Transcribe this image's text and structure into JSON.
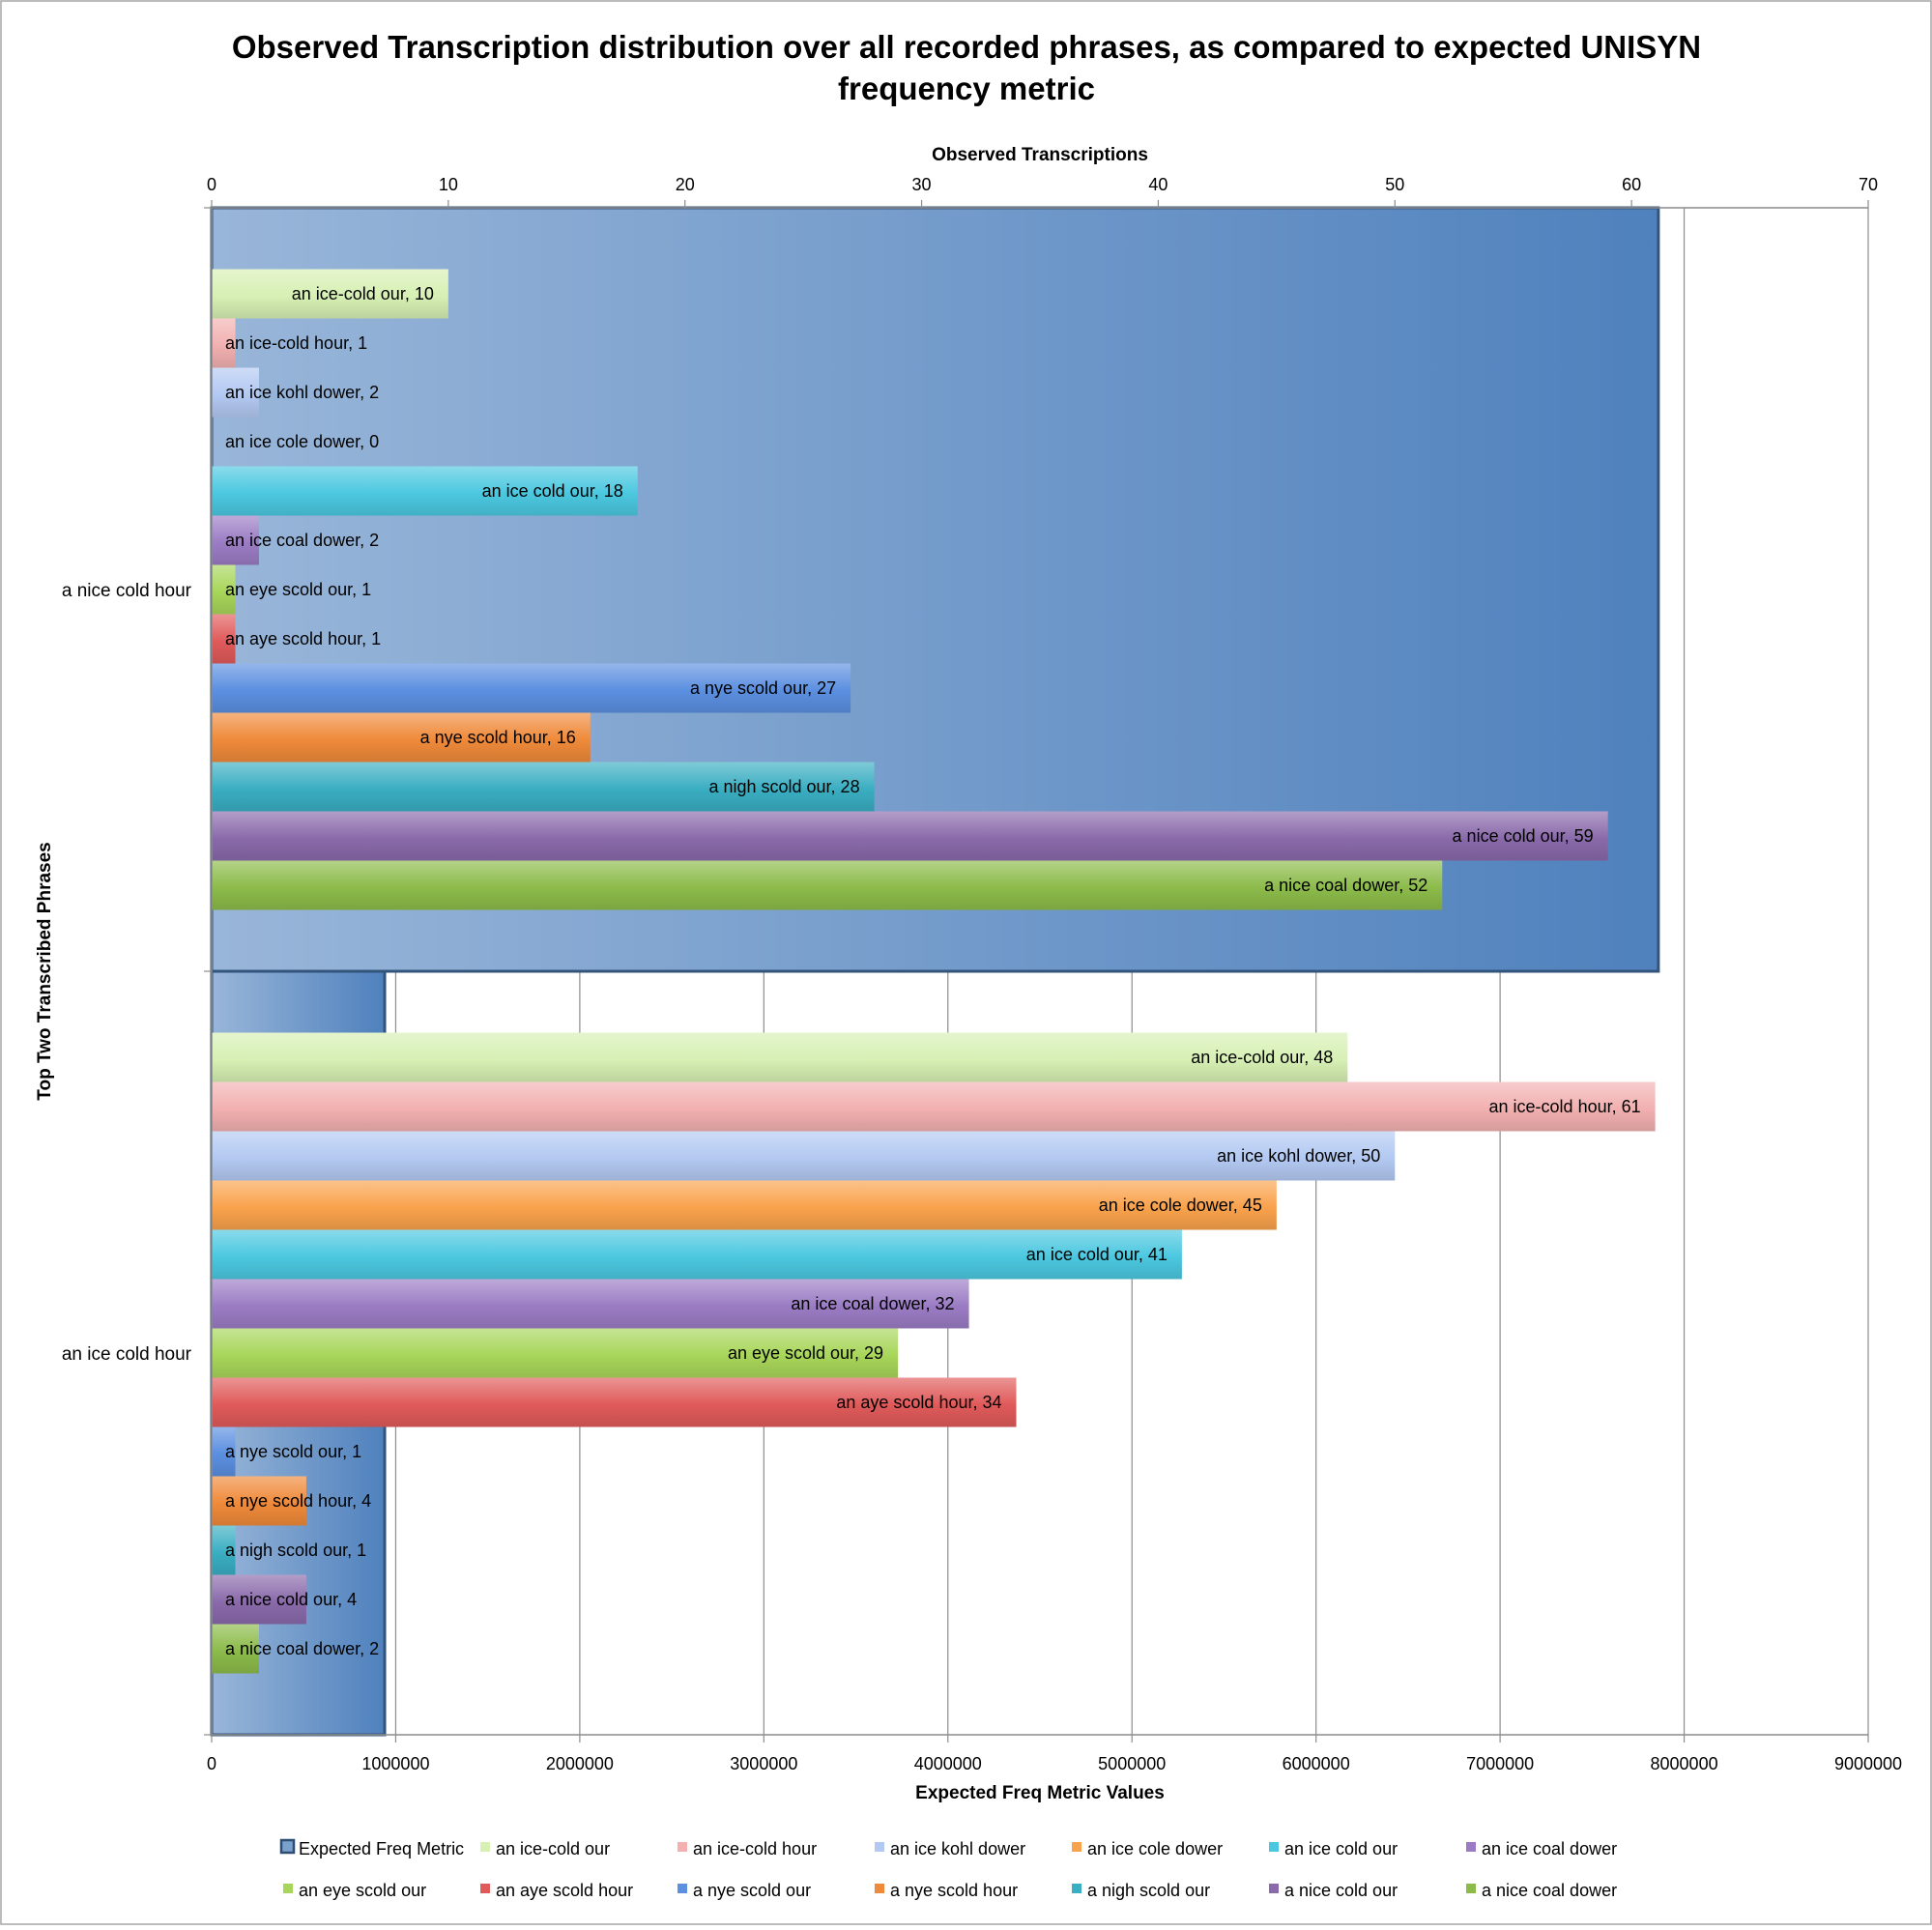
{
  "chart_data": {
    "type": "bar",
    "orientation": "horizontal",
    "title": "Observed Transcription distribution over all recorded phrases, as compared to expected UNISYN frequency metric",
    "title_lines": [
      "Observed Transcription distribution over all recorded phrases, as compared to expected UNISYN",
      "frequency metric"
    ],
    "top_axis": {
      "label": "Observed Transcriptions",
      "min": 0,
      "max": 70,
      "ticks": [
        0,
        10,
        20,
        30,
        40,
        50,
        60,
        70
      ],
      "tick_labels": [
        "0",
        "10",
        "20",
        "30",
        "40",
        "50",
        "60",
        "70"
      ]
    },
    "bottom_axis": {
      "label": "Expected Freq Metric Values",
      "min": 0,
      "max": 9000000,
      "ticks": [
        0,
        1000000,
        2000000,
        3000000,
        4000000,
        5000000,
        6000000,
        7000000,
        8000000,
        9000000
      ],
      "tick_labels": [
        "0",
        "1000000",
        "2000000",
        "3000000",
        "4000000",
        "5000000",
        "6000000",
        "7000000",
        "8000000",
        "9000000"
      ]
    },
    "y_axis": {
      "label": "Top Two Transcribed Phrases"
    },
    "categories": [
      "a nice cold hour",
      "an ice cold hour"
    ],
    "expected_series": {
      "name": "Expected Freq Metric",
      "color": "#4f81bd",
      "values": [
        7860000,
        940000
      ]
    },
    "series": [
      {
        "name": "an ice-cold our",
        "color": "#d7f0b4",
        "values": [
          10,
          48
        ]
      },
      {
        "name": "an ice-cold hour",
        "color": "#f2b0b0",
        "values": [
          1,
          61
        ]
      },
      {
        "name": "an ice kohl dower",
        "color": "#b3c9f2",
        "values": [
          2,
          50
        ]
      },
      {
        "name": "an ice cole dower",
        "color": "#f9a24c",
        "values": [
          0,
          45
        ]
      },
      {
        "name": "an ice cold our",
        "color": "#4bc8e0",
        "values": [
          18,
          41
        ]
      },
      {
        "name": "an ice coal dower",
        "color": "#9b7cc4",
        "values": [
          2,
          32
        ]
      },
      {
        "name": "an eye scold our",
        "color": "#a8d65a",
        "values": [
          1,
          29
        ]
      },
      {
        "name": "an aye scold hour",
        "color": "#e05a5a",
        "values": [
          1,
          34
        ]
      },
      {
        "name": "a nye scold our",
        "color": "#5b8fe0",
        "values": [
          27,
          1
        ]
      },
      {
        "name": "a nye scold hour",
        "color": "#ef8a3a",
        "values": [
          16,
          4
        ]
      },
      {
        "name": "a nigh scold our",
        "color": "#3aaec2",
        "values": [
          28,
          1
        ]
      },
      {
        "name": "a nice cold our",
        "color": "#8a6aaa",
        "values": [
          59,
          4
        ]
      },
      {
        "name": "a nice coal dower",
        "color": "#8cbb4a",
        "values": [
          52,
          2
        ]
      }
    ],
    "data_label_separator": ", ",
    "gridlines": {
      "vertical": true,
      "axis": "bottom"
    },
    "legend": {
      "position": "bottom"
    }
  }
}
